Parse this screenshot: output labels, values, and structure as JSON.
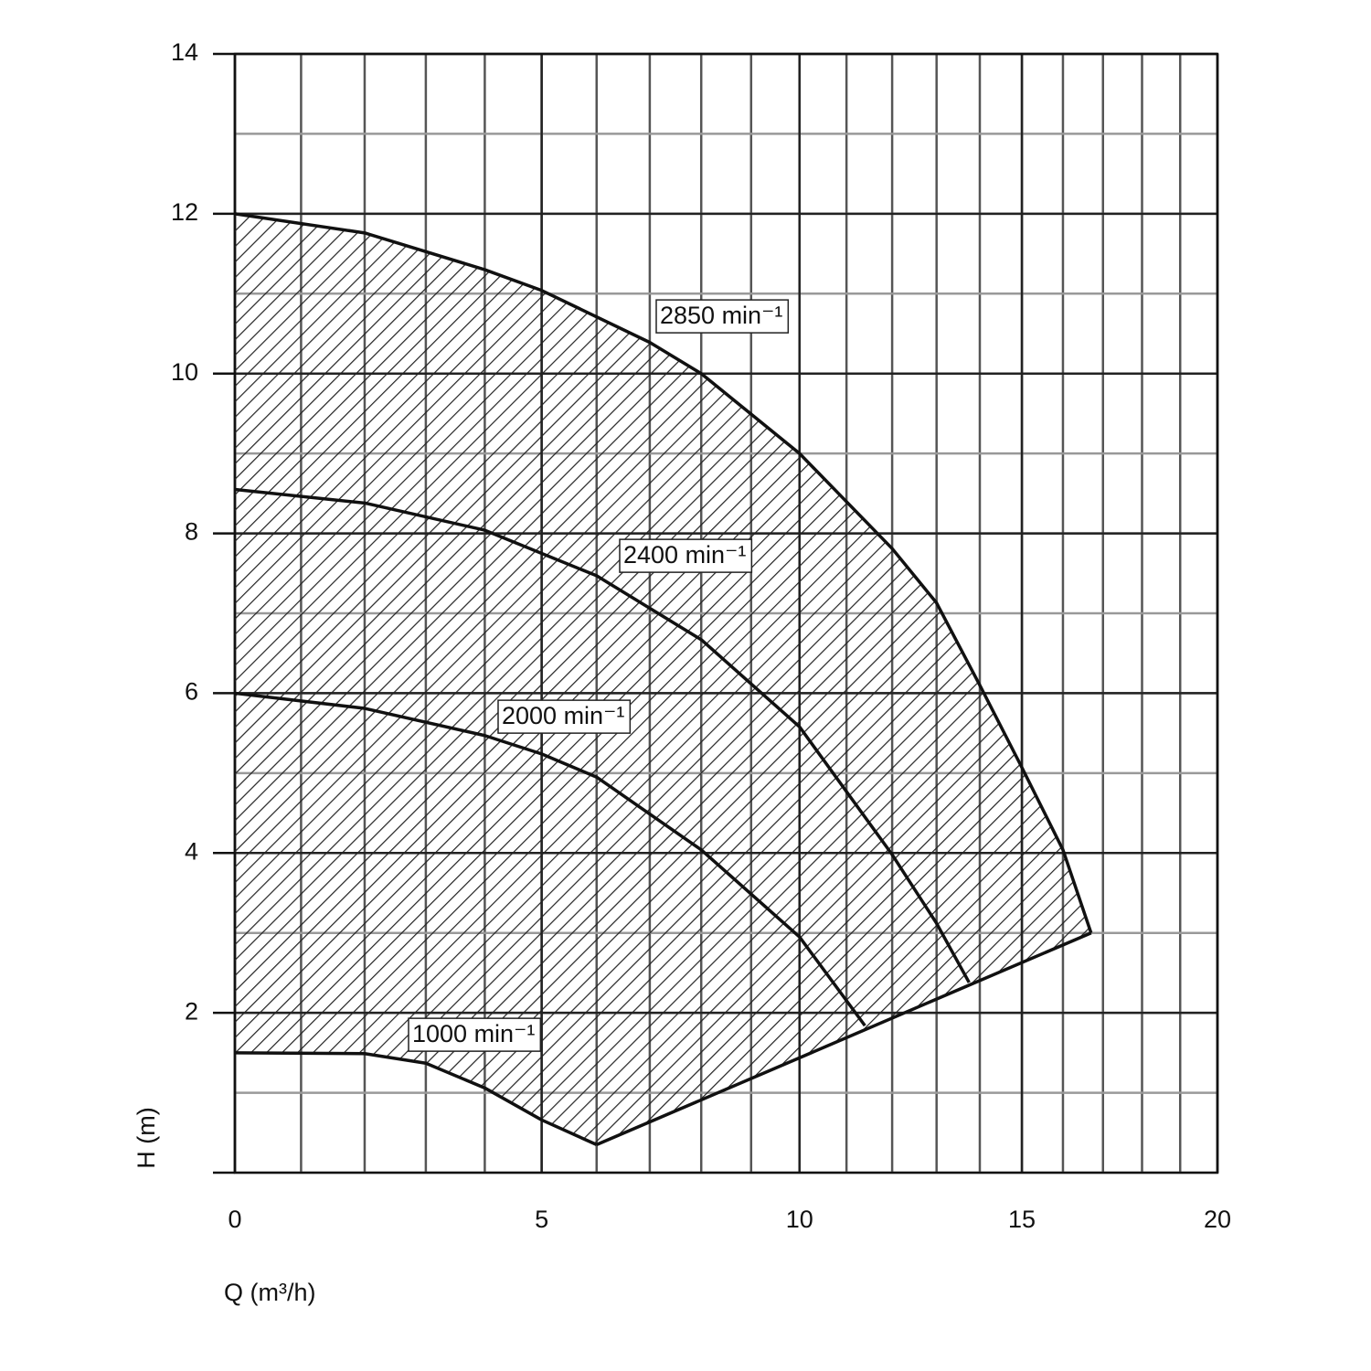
{
  "chart_data": {
    "type": "line",
    "x_label": "Q (m³/h)",
    "y_label": "H (m)",
    "xlim": [
      0,
      20
    ],
    "xticks": [
      0,
      5,
      10,
      15,
      20
    ],
    "ylim": [
      0,
      14
    ],
    "yticks": [
      2,
      4,
      6,
      8,
      10,
      12,
      14
    ],
    "grid": true,
    "hatched": true,
    "series": [
      {
        "name": "2850 min⁻¹",
        "color": "#111111",
        "x": [
          0,
          2,
          4,
          5,
          7,
          8,
          10,
          12,
          13,
          14,
          15,
          16,
          16.7
        ],
        "values": [
          12,
          11.76,
          11.3,
          11.04,
          10.39,
          10,
          9,
          7.81,
          7.13,
          6.1,
          5.07,
          4.04,
          3
        ]
      },
      {
        "name": "2400 min⁻¹",
        "color": "#111111",
        "x": [
          0,
          2,
          4,
          6,
          8,
          10,
          12,
          13,
          13.75
        ],
        "values": [
          8.55,
          8.38,
          8.04,
          7.47,
          6.67,
          5.58,
          3.98,
          3.12,
          2.38
        ]
      },
      {
        "name": "2000 min⁻¹",
        "color": "#111111",
        "x": [
          0,
          2,
          4,
          5,
          6,
          8,
          10,
          11.4
        ],
        "values": [
          6,
          5.81,
          5.47,
          5.24,
          4.95,
          4.04,
          2.95,
          1.84
        ]
      },
      {
        "name": "1000 min⁻¹",
        "color": "#111111",
        "x": [
          0,
          2,
          3,
          4,
          5,
          6
        ],
        "values": [
          1.5,
          1.49,
          1.37,
          1.06,
          0.66,
          0.35
        ]
      },
      {
        "color": "#111111",
        "x": [
          6,
          16.7
        ],
        "values": [
          0.35,
          3
        ]
      }
    ]
  }
}
